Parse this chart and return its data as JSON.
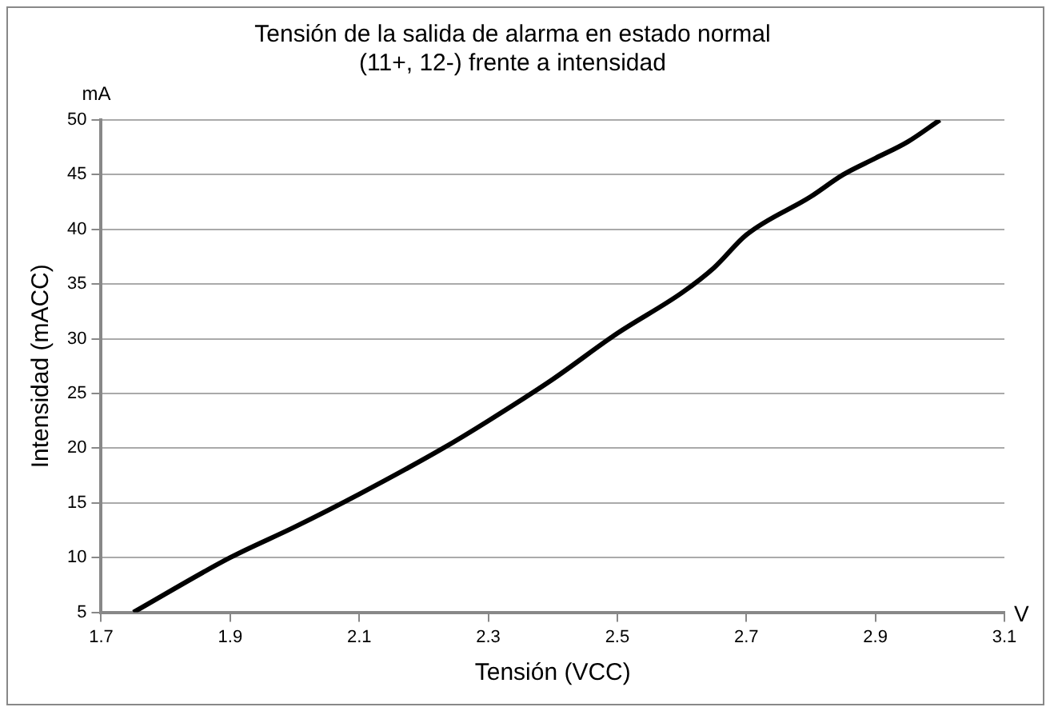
{
  "chart_data": {
    "type": "line",
    "title": "Tensión de la salida de alarma en estado normal\n(11+, 12-) frente a intensidad",
    "xlabel": "Tensión (VCC)",
    "ylabel": "Intensidad (mACC)",
    "annotations": [
      "mA",
      "V"
    ],
    "series": [
      {
        "color": "#000000",
        "x": [
          1.75,
          1.9,
          2.0,
          2.1,
          2.23,
          2.3,
          2.4,
          2.5,
          2.6,
          2.65,
          2.7,
          2.8,
          2.85,
          2.9,
          2.95,
          3.0
        ],
        "values": [
          5,
          10,
          12.8,
          15.8,
          20,
          22.5,
          26.3,
          30.5,
          34.2,
          36.5,
          39.5,
          43,
          45,
          46.5,
          48,
          50
        ]
      }
    ],
    "xlim": [
      1.7,
      3.1
    ],
    "xticks": [
      1.7,
      1.9,
      2.1,
      2.3,
      2.5,
      2.7,
      2.9,
      3.1
    ],
    "ylim": [
      5,
      50
    ],
    "yticks": [
      5,
      10,
      15,
      20,
      25,
      30,
      35,
      40,
      45,
      50
    ],
    "grid": "y",
    "legend": false,
    "marker": "none",
    "line_style": "solid"
  }
}
